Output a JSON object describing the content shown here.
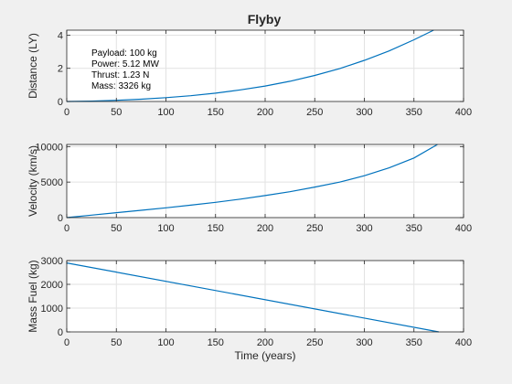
{
  "figure": {
    "title": "Flyby",
    "annotation": [
      "Payload: 100 kg",
      "Power: 5.12 MW",
      "Thrust: 1.23 N",
      "Mass: 3326 kg"
    ]
  },
  "chart_data": [
    {
      "type": "line",
      "title": "Flyby",
      "xlabel": "",
      "ylabel": "Distance (LY)",
      "xlim": [
        0,
        400
      ],
      "ylim": [
        0,
        4.3
      ],
      "xticks": [
        0,
        50,
        100,
        150,
        200,
        250,
        300,
        350,
        400
      ],
      "yticks": [
        0,
        2,
        4
      ],
      "grid": true,
      "series": [
        {
          "color": "#0072bd",
          "x": [
            0,
            25,
            50,
            75,
            100,
            125,
            150,
            175,
            200,
            225,
            250,
            275,
            300,
            325,
            350,
            375
          ],
          "y": [
            0,
            0.02,
            0.07,
            0.14,
            0.23,
            0.35,
            0.5,
            0.7,
            0.93,
            1.22,
            1.57,
            1.98,
            2.48,
            3.05,
            3.72,
            4.45
          ]
        }
      ]
    },
    {
      "type": "line",
      "xlabel": "",
      "ylabel": "Velocity (km/s)",
      "xlim": [
        0,
        400
      ],
      "ylim": [
        0,
        10300
      ],
      "xticks": [
        0,
        50,
        100,
        150,
        200,
        250,
        300,
        350,
        400
      ],
      "yticks": [
        0,
        5000,
        10000
      ],
      "grid": true,
      "series": [
        {
          "color": "#0072bd",
          "x": [
            0,
            25,
            50,
            75,
            100,
            125,
            150,
            175,
            200,
            225,
            250,
            275,
            300,
            325,
            350,
            375
          ],
          "y": [
            0,
            350,
            700,
            1030,
            1380,
            1750,
            2150,
            2600,
            3100,
            3650,
            4300,
            5000,
            5900,
            7000,
            8400,
            10400
          ]
        }
      ]
    },
    {
      "type": "line",
      "xlabel": "Time (years)",
      "ylabel": "Mass Fuel (kg)",
      "xlim": [
        0,
        400
      ],
      "ylim": [
        0,
        3000
      ],
      "xticks": [
        0,
        50,
        100,
        150,
        200,
        250,
        300,
        350,
        400
      ],
      "yticks": [
        0,
        1000,
        2000,
        3000
      ],
      "grid": true,
      "series": [
        {
          "color": "#0072bd",
          "x": [
            0,
            375
          ],
          "y": [
            2900,
            0
          ]
        }
      ]
    }
  ]
}
